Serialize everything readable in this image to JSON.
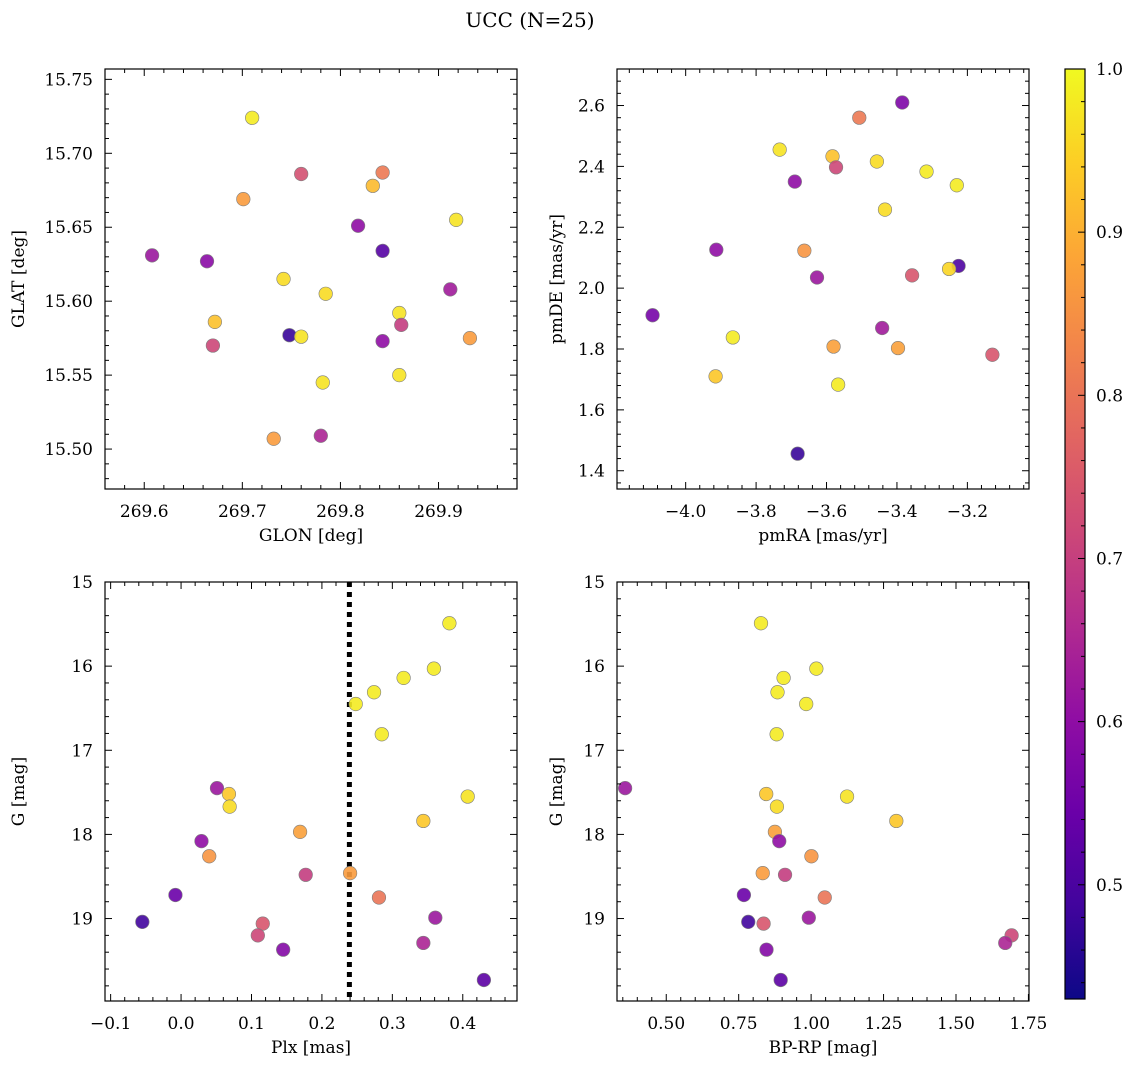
{
  "figure": {
    "title": "UCC (N=25)"
  },
  "colorbar": {
    "cmap": "plasma",
    "range": [
      0.43,
      1.0
    ],
    "ticks": [
      "0.5",
      "0.6",
      "0.7",
      "0.8",
      "0.9",
      "1.0"
    ]
  },
  "chart_data": [
    {
      "type": "scatter",
      "xlabel": "GLON [deg]",
      "ylabel": "GLAT [deg]",
      "xlim": [
        269.56,
        269.98
      ],
      "ylim": [
        15.473,
        15.757
      ],
      "xticks": [
        "269.6",
        "269.7",
        "269.8",
        "269.9"
      ],
      "yticks": [
        "15.50",
        "15.55",
        "15.60",
        "15.65",
        "15.70",
        "15.75"
      ],
      "points": [
        {
          "x": 269.71,
          "y": 15.724,
          "c": 0.98
        },
        {
          "x": 269.76,
          "y": 15.686,
          "c": 0.72
        },
        {
          "x": 269.843,
          "y": 15.687,
          "c": 0.8
        },
        {
          "x": 269.833,
          "y": 15.678,
          "c": 0.91
        },
        {
          "x": 269.701,
          "y": 15.669,
          "c": 0.86
        },
        {
          "x": 269.818,
          "y": 15.651,
          "c": 0.58
        },
        {
          "x": 269.918,
          "y": 15.655,
          "c": 0.97
        },
        {
          "x": 269.608,
          "y": 15.631,
          "c": 0.6
        },
        {
          "x": 269.843,
          "y": 15.634,
          "c": 0.49
        },
        {
          "x": 269.664,
          "y": 15.627,
          "c": 0.57
        },
        {
          "x": 269.742,
          "y": 15.615,
          "c": 0.96
        },
        {
          "x": 269.785,
          "y": 15.605,
          "c": 0.96
        },
        {
          "x": 269.912,
          "y": 15.608,
          "c": 0.61
        },
        {
          "x": 269.86,
          "y": 15.592,
          "c": 0.97
        },
        {
          "x": 269.672,
          "y": 15.586,
          "c": 0.92
        },
        {
          "x": 269.862,
          "y": 15.584,
          "c": 0.68
        },
        {
          "x": 269.748,
          "y": 15.577,
          "c": 0.45
        },
        {
          "x": 269.76,
          "y": 15.576,
          "c": 0.97
        },
        {
          "x": 269.932,
          "y": 15.575,
          "c": 0.86
        },
        {
          "x": 269.843,
          "y": 15.573,
          "c": 0.58
        },
        {
          "x": 269.67,
          "y": 15.57,
          "c": 0.7
        },
        {
          "x": 269.86,
          "y": 15.55,
          "c": 0.97
        },
        {
          "x": 269.782,
          "y": 15.545,
          "c": 0.97
        },
        {
          "x": 269.78,
          "y": 15.509,
          "c": 0.63
        },
        {
          "x": 269.732,
          "y": 15.507,
          "c": 0.86
        }
      ]
    },
    {
      "type": "scatter",
      "xlabel": "pmRA [mas/yr]",
      "ylabel": "pmDE [mas/yr]",
      "xlim": [
        -4.195,
        -3.025
      ],
      "ylim": [
        1.34,
        2.72
      ],
      "xticks": [
        "−4.0",
        "−3.8",
        "−3.6",
        "−3.4",
        "−3.2"
      ],
      "yticks": [
        "1.4",
        "1.6",
        "1.8",
        "2.0",
        "2.2",
        "2.4",
        "2.6"
      ],
      "points": [
        {
          "x": -3.385,
          "y": 2.61,
          "c": 0.55
        },
        {
          "x": -3.507,
          "y": 2.56,
          "c": 0.8
        },
        {
          "x": -3.733,
          "y": 2.455,
          "c": 0.97
        },
        {
          "x": -3.583,
          "y": 2.433,
          "c": 0.92
        },
        {
          "x": -3.457,
          "y": 2.416,
          "c": 0.96
        },
        {
          "x": -3.573,
          "y": 2.397,
          "c": 0.7
        },
        {
          "x": -3.316,
          "y": 2.383,
          "c": 0.98
        },
        {
          "x": -3.69,
          "y": 2.35,
          "c": 0.58
        },
        {
          "x": -3.23,
          "y": 2.338,
          "c": 0.98
        },
        {
          "x": -3.434,
          "y": 2.258,
          "c": 0.96
        },
        {
          "x": -3.913,
          "y": 2.126,
          "c": 0.58
        },
        {
          "x": -3.663,
          "y": 2.123,
          "c": 0.85
        },
        {
          "x": -3.225,
          "y": 2.073,
          "c": 0.48
        },
        {
          "x": -3.252,
          "y": 2.063,
          "c": 0.95
        },
        {
          "x": -3.357,
          "y": 2.042,
          "c": 0.73
        },
        {
          "x": -3.627,
          "y": 2.035,
          "c": 0.6
        },
        {
          "x": -4.094,
          "y": 1.911,
          "c": 0.54
        },
        {
          "x": -3.442,
          "y": 1.869,
          "c": 0.61
        },
        {
          "x": -3.866,
          "y": 1.838,
          "c": 0.98
        },
        {
          "x": -3.58,
          "y": 1.808,
          "c": 0.87
        },
        {
          "x": -3.397,
          "y": 1.803,
          "c": 0.87
        },
        {
          "x": -3.129,
          "y": 1.781,
          "c": 0.73
        },
        {
          "x": -3.915,
          "y": 1.71,
          "c": 0.93
        },
        {
          "x": -3.567,
          "y": 1.683,
          "c": 0.98
        },
        {
          "x": -3.682,
          "y": 1.456,
          "c": 0.45
        }
      ]
    },
    {
      "type": "scatter",
      "xlabel": "Plx [mas]",
      "ylabel": "G [mag]",
      "xlim": [
        -0.108,
        0.477
      ],
      "ylim": [
        19.98,
        15.0
      ],
      "xticks": [
        "−0.1",
        "0.0",
        "0.1",
        "0.2",
        "0.3",
        "0.4"
      ],
      "yticks": [
        "15",
        "16",
        "17",
        "18",
        "19"
      ],
      "vline": 0.239,
      "points": [
        {
          "x": 0.381,
          "y": 15.49,
          "c": 0.98
        },
        {
          "x": 0.359,
          "y": 16.03,
          "c": 0.98
        },
        {
          "x": 0.316,
          "y": 16.14,
          "c": 0.98
        },
        {
          "x": 0.274,
          "y": 16.31,
          "c": 0.98
        },
        {
          "x": 0.248,
          "y": 16.45,
          "c": 0.98
        },
        {
          "x": 0.285,
          "y": 16.81,
          "c": 0.98
        },
        {
          "x": 0.051,
          "y": 17.45,
          "c": 0.6
        },
        {
          "x": 0.068,
          "y": 17.52,
          "c": 0.93
        },
        {
          "x": 0.407,
          "y": 17.55,
          "c": 0.97
        },
        {
          "x": 0.069,
          "y": 17.67,
          "c": 0.96
        },
        {
          "x": 0.344,
          "y": 17.84,
          "c": 0.93
        },
        {
          "x": 0.169,
          "y": 17.97,
          "c": 0.87
        },
        {
          "x": 0.029,
          "y": 18.08,
          "c": 0.58
        },
        {
          "x": 0.04,
          "y": 18.26,
          "c": 0.85
        },
        {
          "x": 0.24,
          "y": 18.46,
          "c": 0.86
        },
        {
          "x": 0.177,
          "y": 18.48,
          "c": 0.68
        },
        {
          "x": -0.008,
          "y": 18.72,
          "c": 0.52
        },
        {
          "x": 0.281,
          "y": 18.75,
          "c": 0.79
        },
        {
          "x": 0.361,
          "y": 18.99,
          "c": 0.6
        },
        {
          "x": -0.055,
          "y": 19.04,
          "c": 0.46
        },
        {
          "x": 0.116,
          "y": 19.06,
          "c": 0.73
        },
        {
          "x": 0.109,
          "y": 19.2,
          "c": 0.7
        },
        {
          "x": 0.344,
          "y": 19.29,
          "c": 0.63
        },
        {
          "x": 0.145,
          "y": 19.37,
          "c": 0.56
        },
        {
          "x": 0.43,
          "y": 19.73,
          "c": 0.5
        }
      ]
    },
    {
      "type": "scatter",
      "xlabel": "BP-RP [mag]",
      "ylabel": "G [mag]",
      "xlim": [
        0.33,
        1.752
      ],
      "ylim": [
        19.98,
        15.0
      ],
      "xticks": [
        "0.50",
        "0.75",
        "1.00",
        "1.25",
        "1.50",
        "1.75"
      ],
      "yticks": [
        "15",
        "16",
        "17",
        "18",
        "19"
      ],
      "points": [
        {
          "x": 0.827,
          "y": 15.49,
          "c": 0.98
        },
        {
          "x": 1.018,
          "y": 16.03,
          "c": 0.98
        },
        {
          "x": 0.905,
          "y": 16.14,
          "c": 0.98
        },
        {
          "x": 0.884,
          "y": 16.31,
          "c": 0.98
        },
        {
          "x": 0.983,
          "y": 16.45,
          "c": 0.98
        },
        {
          "x": 0.881,
          "y": 16.81,
          "c": 0.98
        },
        {
          "x": 0.358,
          "y": 17.45,
          "c": 0.6
        },
        {
          "x": 0.845,
          "y": 17.52,
          "c": 0.93
        },
        {
          "x": 1.124,
          "y": 17.55,
          "c": 0.97
        },
        {
          "x": 0.882,
          "y": 17.67,
          "c": 0.96
        },
        {
          "x": 1.294,
          "y": 17.84,
          "c": 0.93
        },
        {
          "x": 0.875,
          "y": 17.97,
          "c": 0.87
        },
        {
          "x": 0.89,
          "y": 18.08,
          "c": 0.58
        },
        {
          "x": 1.001,
          "y": 18.26,
          "c": 0.85
        },
        {
          "x": 0.833,
          "y": 18.46,
          "c": 0.86
        },
        {
          "x": 0.91,
          "y": 18.48,
          "c": 0.68
        },
        {
          "x": 0.768,
          "y": 18.72,
          "c": 0.52
        },
        {
          "x": 1.047,
          "y": 18.75,
          "c": 0.79
        },
        {
          "x": 0.992,
          "y": 18.99,
          "c": 0.6
        },
        {
          "x": 0.783,
          "y": 19.04,
          "c": 0.46
        },
        {
          "x": 0.836,
          "y": 19.06,
          "c": 0.73
        },
        {
          "x": 1.692,
          "y": 19.2,
          "c": 0.7
        },
        {
          "x": 1.67,
          "y": 19.29,
          "c": 0.63
        },
        {
          "x": 0.846,
          "y": 19.37,
          "c": 0.56
        },
        {
          "x": 0.895,
          "y": 19.73,
          "c": 0.5
        }
      ]
    }
  ]
}
